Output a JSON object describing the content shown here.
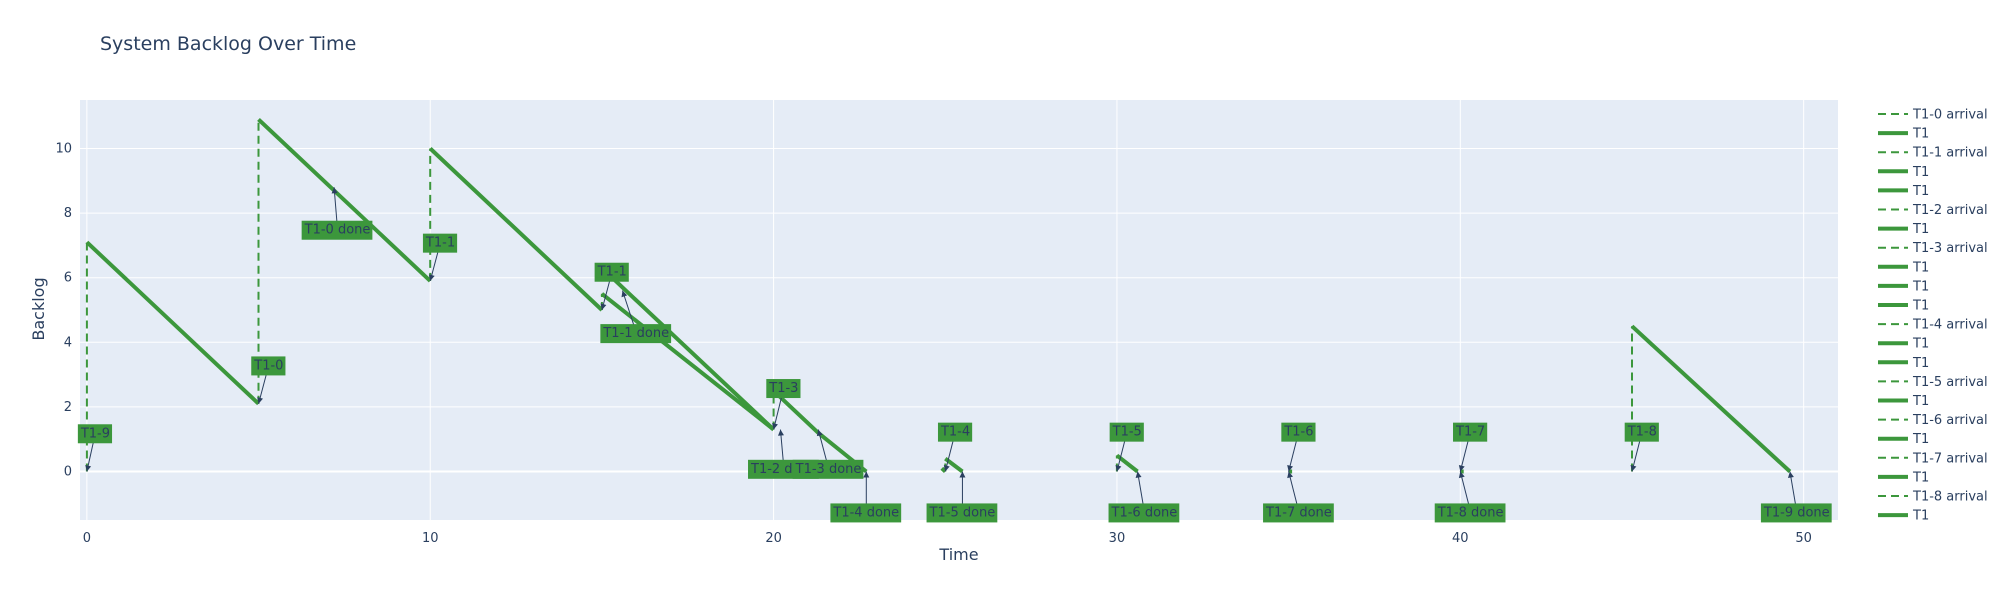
{
  "colors": {
    "plot_bg": "#e5ecf6",
    "grid": "#ffffff",
    "series": "#3c973c",
    "label_bg": "#3c973c",
    "text": "#2a3f5f"
  },
  "chart_data": {
    "type": "line",
    "title": "System Backlog Over Time",
    "xlabel": "Time",
    "ylabel": "Backlog",
    "xlim": [
      -0.2,
      51
    ],
    "ylim": [
      -1.5,
      11.5
    ],
    "xticks": [
      0,
      10,
      20,
      30,
      40,
      50
    ],
    "yticks": [
      0,
      2,
      4,
      6,
      8,
      10
    ],
    "grid": true,
    "legend_position": "right",
    "series": [
      {
        "name": "T1-0 arrival",
        "style": "dash",
        "points": [
          [
            5,
            2.1
          ],
          [
            5,
            10.9
          ]
        ]
      },
      {
        "name": "T1",
        "style": "solid",
        "points": [
          [
            0,
            7.1
          ],
          [
            5,
            2.1
          ]
        ]
      },
      {
        "name": "T1-1 arrival",
        "style": "dash",
        "points": [
          [
            10,
            5.9
          ],
          [
            10,
            10
          ]
        ]
      },
      {
        "name": "T1",
        "style": "solid",
        "points": [
          [
            5,
            10.9
          ],
          [
            10,
            5.9
          ]
        ]
      },
      {
        "name": "T1",
        "style": "solid",
        "points": [
          [
            10,
            10
          ],
          [
            15,
            5
          ]
        ]
      },
      {
        "name": "T1-2 arrival",
        "style": "dash",
        "points": [
          [
            15,
            5
          ],
          [
            15,
            5.5
          ]
        ]
      },
      {
        "name": "T1",
        "style": "solid",
        "points": [
          [
            15,
            5.5
          ],
          [
            20,
            1.3
          ]
        ]
      },
      {
        "name": "T1-3 arrival",
        "style": "dash",
        "points": [
          [
            20,
            1.3
          ],
          [
            20,
            2.5
          ]
        ]
      },
      {
        "name": "T1",
        "style": "solid",
        "points": [
          [
            15.3,
            6
          ],
          [
            20,
            1.3
          ]
        ]
      },
      {
        "name": "T1",
        "style": "solid",
        "points": [
          [
            20,
            2.5
          ],
          [
            21.3,
            1.2
          ]
        ]
      },
      {
        "name": "T1",
        "style": "solid",
        "points": [
          [
            21.3,
            1.2
          ],
          [
            22.7,
            0
          ]
        ]
      },
      {
        "name": "T1-4 arrival",
        "style": "dash",
        "points": [
          [
            25,
            0
          ],
          [
            25,
            0.4
          ]
        ]
      },
      {
        "name": "T1",
        "style": "solid",
        "points": [
          [
            25,
            0.4
          ],
          [
            25.5,
            0
          ]
        ]
      },
      {
        "name": "T1",
        "style": "solid",
        "points": [
          [
            24.9,
            0.1
          ],
          [
            25,
            0
          ]
        ]
      },
      {
        "name": "T1-5 arrival",
        "style": "dash",
        "points": [
          [
            30,
            0
          ],
          [
            30,
            0.5
          ]
        ]
      },
      {
        "name": "T1",
        "style": "solid",
        "points": [
          [
            30,
            0.5
          ],
          [
            30.6,
            0
          ]
        ]
      },
      {
        "name": "T1-6 arrival",
        "style": "dash",
        "points": [
          [
            35,
            0
          ],
          [
            35,
            0
          ]
        ]
      },
      {
        "name": "T1",
        "style": "solid",
        "points": [
          [
            35,
            0
          ],
          [
            35.1,
            0
          ]
        ]
      },
      {
        "name": "T1-7 arrival",
        "style": "dash",
        "points": [
          [
            40,
            0
          ],
          [
            40,
            0
          ]
        ]
      },
      {
        "name": "T1",
        "style": "solid",
        "points": [
          [
            40,
            0
          ],
          [
            40.1,
            0
          ]
        ]
      },
      {
        "name": "T1-8 arrival",
        "style": "dash",
        "points": [
          [
            45,
            0
          ],
          [
            45,
            4.5
          ]
        ]
      },
      {
        "name": "T1",
        "style": "solid",
        "points": [
          [
            45,
            4.5
          ],
          [
            49.6,
            0
          ]
        ]
      },
      {
        "name": "T1-9 arrival",
        "style": "dash",
        "points": [
          [
            0,
            0
          ],
          [
            0,
            7.1
          ]
        ]
      }
    ],
    "annotations": [
      {
        "text": "T1-9",
        "ax": 0,
        "ay": 0,
        "tx": 0.25,
        "ty": 1.2
      },
      {
        "text": "T1-0",
        "ax": 5,
        "ay": 2.1,
        "tx": 5.3,
        "ty": 3.3
      },
      {
        "text": "T1-0 done",
        "ax": 7.2,
        "ay": 8.8,
        "tx": 7.3,
        "ty": 7.5
      },
      {
        "text": "T1-1",
        "ax": 10,
        "ay": 5.9,
        "tx": 10.3,
        "ty": 7.1
      },
      {
        "text": "T1-1",
        "ax": 15,
        "ay": 5,
        "tx": 15.3,
        "ty": 6.2
      },
      {
        "text": "T1-1 done",
        "ax": 15.6,
        "ay": 5.6,
        "tx": 16,
        "ty": 4.3
      },
      {
        "text": "T1-3",
        "ax": 20,
        "ay": 1.3,
        "tx": 20.3,
        "ty": 2.6
      },
      {
        "text": "T1-2 done",
        "ax": 20.2,
        "ay": 1.3,
        "tx": 20.3,
        "ty": 0.1
      },
      {
        "text": "T1-3 done",
        "ax": 21.3,
        "ay": 1.3,
        "tx": 21.6,
        "ty": 0.1
      },
      {
        "text": "T1-4 done",
        "ax": 22.7,
        "ay": 0,
        "tx": 22.7,
        "ty": -1.25
      },
      {
        "text": "T1-4",
        "ax": 25,
        "ay": 0,
        "tx": 25.3,
        "ty": 1.25
      },
      {
        "text": "T1-5 done",
        "ax": 25.5,
        "ay": 0,
        "tx": 25.5,
        "ty": -1.25
      },
      {
        "text": "T1-5",
        "ax": 30,
        "ay": 0,
        "tx": 30.3,
        "ty": 1.25
      },
      {
        "text": "T1-6 done",
        "ax": 30.6,
        "ay": 0,
        "tx": 30.8,
        "ty": -1.25
      },
      {
        "text": "T1-6",
        "ax": 35,
        "ay": 0,
        "tx": 35.3,
        "ty": 1.25
      },
      {
        "text": "T1-7 done",
        "ax": 35,
        "ay": 0,
        "tx": 35.3,
        "ty": -1.25
      },
      {
        "text": "T1-7",
        "ax": 40,
        "ay": 0,
        "tx": 40.3,
        "ty": 1.25
      },
      {
        "text": "T1-8 done",
        "ax": 40,
        "ay": 0,
        "tx": 40.3,
        "ty": -1.25
      },
      {
        "text": "T1-8",
        "ax": 45,
        "ay": 0,
        "tx": 45.3,
        "ty": 1.25
      },
      {
        "text": "T1-9 done",
        "ax": 49.6,
        "ay": 0,
        "tx": 49.8,
        "ty": -1.25
      }
    ],
    "legend": [
      {
        "label": "T1-0 arrival",
        "style": "dash"
      },
      {
        "label": "T1",
        "style": "solid"
      },
      {
        "label": "T1-1 arrival",
        "style": "dash"
      },
      {
        "label": "T1",
        "style": "solid"
      },
      {
        "label": "T1",
        "style": "solid"
      },
      {
        "label": "T1-2 arrival",
        "style": "dash"
      },
      {
        "label": "T1",
        "style": "solid"
      },
      {
        "label": "T1-3 arrival",
        "style": "dash"
      },
      {
        "label": "T1",
        "style": "solid"
      },
      {
        "label": "T1",
        "style": "solid"
      },
      {
        "label": "T1",
        "style": "solid"
      },
      {
        "label": "T1-4 arrival",
        "style": "dash"
      },
      {
        "label": "T1",
        "style": "solid"
      },
      {
        "label": "T1",
        "style": "solid"
      },
      {
        "label": "T1-5 arrival",
        "style": "dash"
      },
      {
        "label": "T1",
        "style": "solid"
      },
      {
        "label": "T1-6 arrival",
        "style": "dash"
      },
      {
        "label": "T1",
        "style": "solid"
      },
      {
        "label": "T1-7 arrival",
        "style": "dash"
      },
      {
        "label": "T1",
        "style": "solid"
      },
      {
        "label": "T1-8 arrival",
        "style": "dash"
      },
      {
        "label": "T1",
        "style": "solid"
      }
    ]
  }
}
